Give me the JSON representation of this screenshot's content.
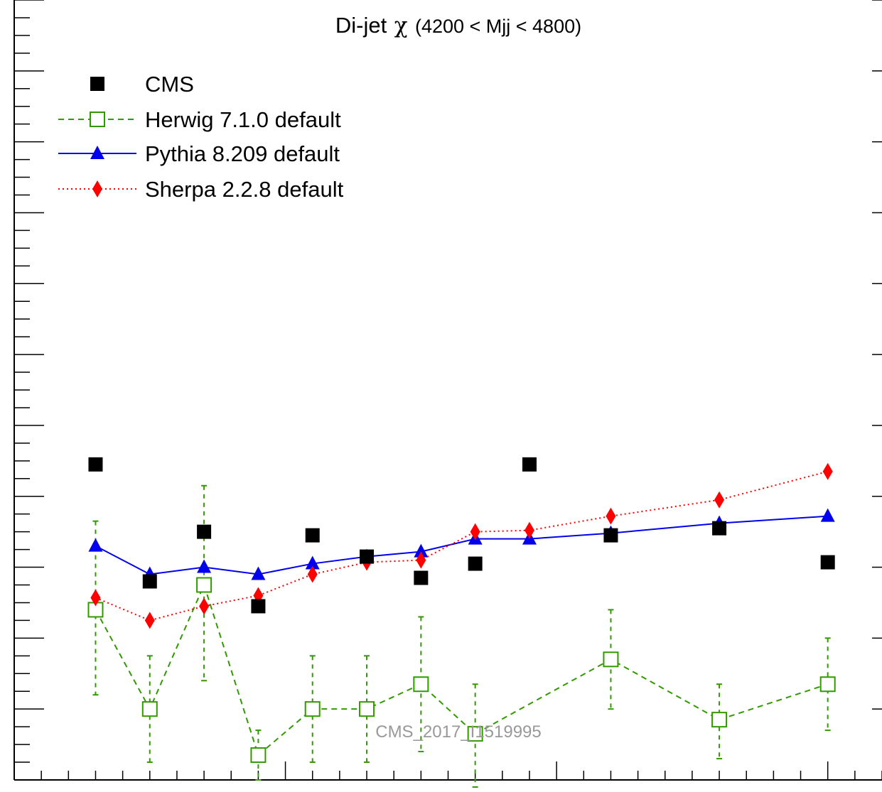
{
  "chart_data": {
    "type": "line",
    "title": "Di-jet",
    "title_symbol": "χ",
    "title_range": "(4200 < Mjj < 4800)",
    "watermark": "CMS_2017_I1519995",
    "x": [
      1.5,
      2.5,
      3.5,
      4.5,
      5.5,
      6.5,
      7.5,
      8.5,
      9.5,
      11,
      13,
      15
    ],
    "xlim": [
      0,
      16
    ],
    "ylim": [
      0,
      11
    ],
    "grid": false,
    "legend_position": "top-left",
    "series": [
      {
        "name": "CMS",
        "style": "markers",
        "marker": "filled-square",
        "color": "#000000",
        "values": [
          4.45,
          2.8,
          3.5,
          2.45,
          3.45,
          3.15,
          2.85,
          3.05,
          4.45,
          3.45,
          3.55,
          3.07
        ]
      },
      {
        "name": "Herwig 7.1.0 default",
        "style": "dashed",
        "marker": "open-square",
        "color": "#339900",
        "values": [
          2.4,
          1.0,
          2.75,
          0.35,
          1.0,
          1.0,
          1.35,
          0.65,
          null,
          1.7,
          0.85,
          1.35
        ],
        "error_low": [
          1.2,
          0.75,
          1.35,
          0.35,
          0.75,
          0.75,
          0.95,
          0.75,
          null,
          0.7,
          0.55,
          0.65
        ],
        "error_high": [
          1.25,
          0.75,
          1.4,
          0.35,
          0.75,
          0.75,
          0.95,
          0.7,
          null,
          0.7,
          0.5,
          0.65
        ]
      },
      {
        "name": "Pythia 8.209 default",
        "style": "solid",
        "marker": "filled-triangle",
        "color": "#0000ee",
        "values": [
          3.3,
          2.9,
          3.0,
          2.9,
          3.05,
          3.15,
          3.22,
          3.4,
          3.4,
          3.48,
          3.62,
          3.72
        ]
      },
      {
        "name": "Sherpa 2.2.8 default",
        "style": "dotted",
        "marker": "filled-diamond",
        "color": "#ff0000",
        "values": [
          2.57,
          2.25,
          2.45,
          2.6,
          2.9,
          3.07,
          3.1,
          3.5,
          3.52,
          3.72,
          3.95,
          4.35
        ]
      }
    ]
  }
}
